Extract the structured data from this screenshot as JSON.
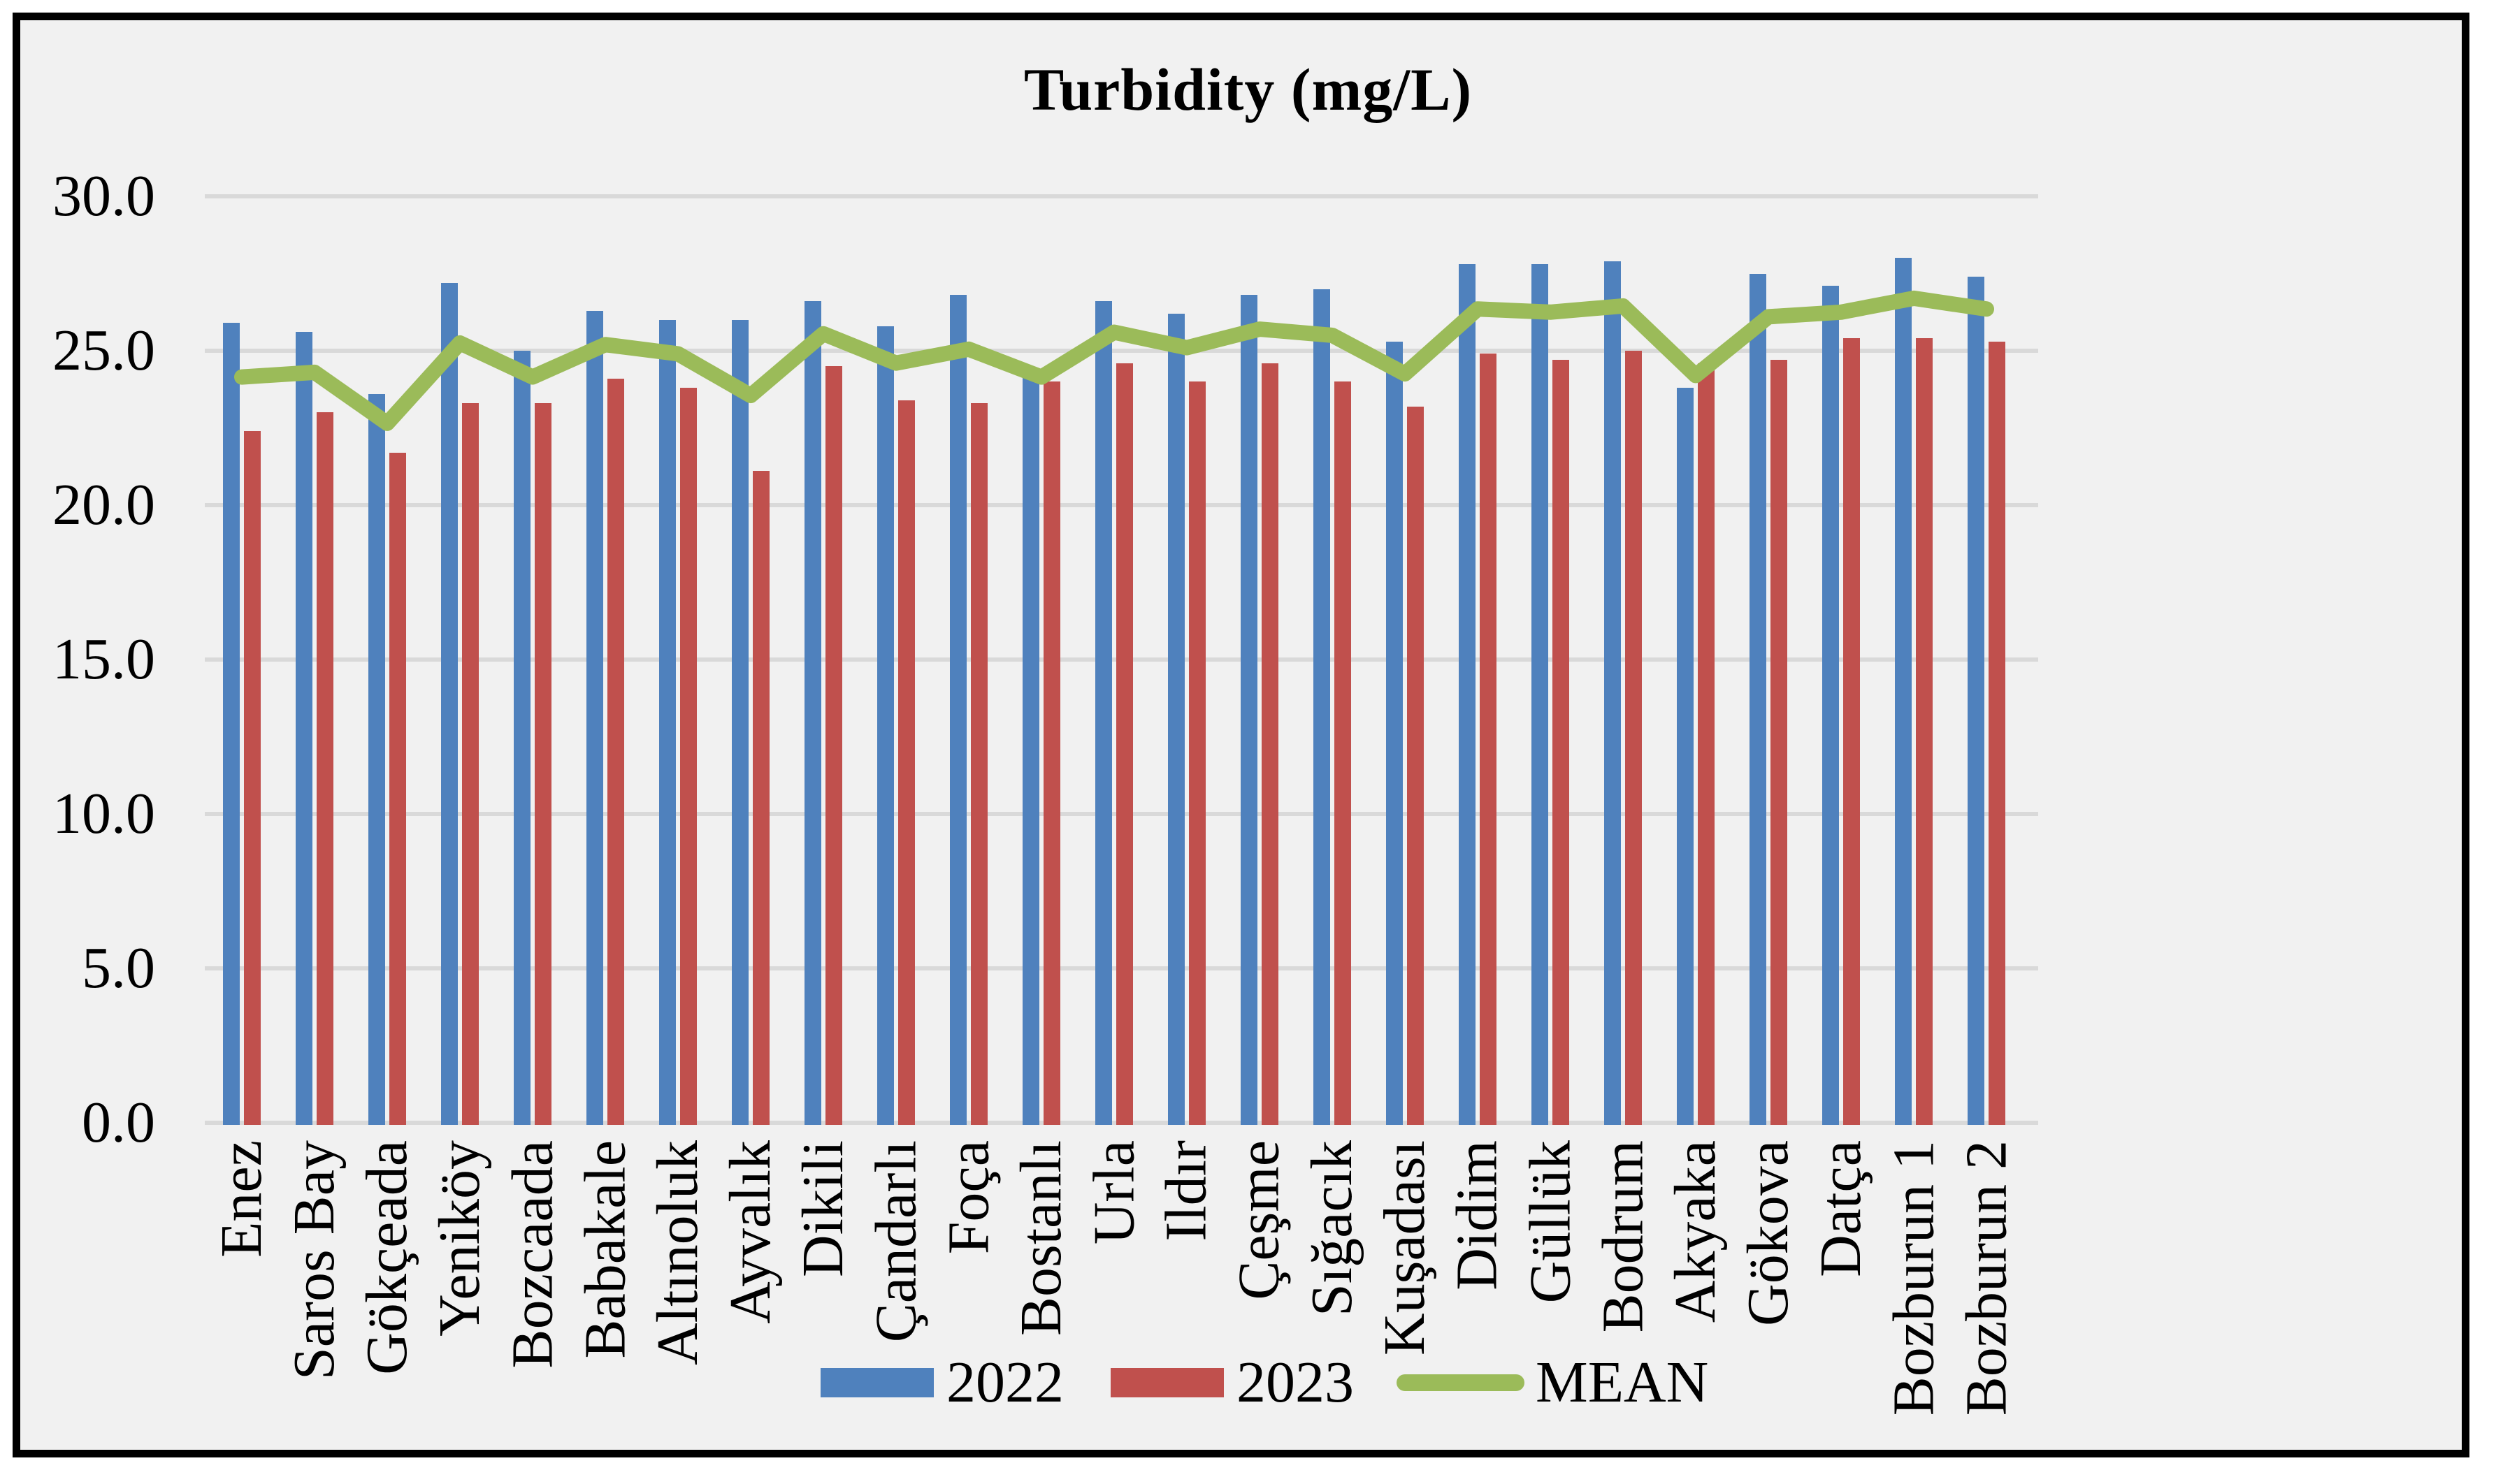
{
  "chart_title": "Turbidity (mg/L)",
  "colors": {
    "series_2022": "#4F81BD",
    "series_2023": "#C0504D",
    "mean_line": "#9BBB59",
    "gridline": "#D9D9D9",
    "plot_background": "#F1F1F1",
    "frame_border": "#000000"
  },
  "y_axis": {
    "min": 0,
    "max": 30,
    "step": 5,
    "tick_labels": [
      "0.0",
      "5.0",
      "10.0",
      "15.0",
      "20.0",
      "25.0",
      "30.0"
    ]
  },
  "legend": {
    "items": [
      {
        "label": "2022",
        "color": "#4F81BD",
        "swatch": "bar"
      },
      {
        "label": "2023",
        "color": "#C0504D",
        "swatch": "bar"
      },
      {
        "label": "MEAN",
        "color": "#9BBB59",
        "swatch": "line"
      }
    ]
  },
  "chart_data": {
    "type": "bar",
    "title": "Turbidity (mg/L)",
    "xlabel": "",
    "ylabel": "",
    "ylim": [
      0,
      30
    ],
    "ytick_step": 5,
    "grid": true,
    "legend_position": "bottom",
    "categories": [
      "Enez",
      "Saros Bay",
      "Gökçeada",
      "Yeniköy",
      "Bozcaada",
      "Babakale",
      "Altınoluk",
      "Ayvalık",
      "Dikili",
      "Çandarlı",
      "Foça",
      "Bostanlı",
      "Urla",
      "Ildır",
      "Çeşme",
      "Sığacık",
      "Kuşadası",
      "Didim",
      "Güllük",
      "Bodrum",
      "Akyaka",
      "Gökova",
      "Datça",
      "Bozburun 1",
      "Bozburun 2"
    ],
    "series": [
      {
        "name": "2022",
        "type": "bar",
        "color": "#4F81BD",
        "values": [
          25.9,
          25.6,
          23.6,
          27.2,
          25.0,
          26.3,
          26.0,
          26.0,
          26.6,
          25.8,
          26.8,
          24.3,
          26.6,
          26.2,
          26.8,
          27.0,
          25.3,
          27.8,
          27.8,
          27.9,
          23.8,
          27.5,
          27.1,
          28.0,
          27.4
        ]
      },
      {
        "name": "2023",
        "type": "bar",
        "color": "#C0504D",
        "values": [
          22.4,
          23.0,
          21.7,
          23.3,
          23.3,
          24.1,
          23.8,
          21.1,
          24.5,
          23.4,
          23.3,
          24.0,
          24.6,
          24.0,
          24.6,
          24.0,
          23.2,
          24.9,
          24.7,
          25.0,
          24.6,
          24.7,
          25.4,
          25.4,
          25.3
        ]
      },
      {
        "name": "MEAN",
        "type": "line",
        "color": "#9BBB59",
        "values": [
          24.15,
          24.3,
          22.65,
          25.25,
          24.15,
          25.2,
          24.9,
          23.55,
          25.55,
          24.6,
          25.05,
          24.15,
          25.6,
          25.1,
          25.7,
          25.5,
          24.25,
          26.35,
          26.25,
          26.45,
          24.2,
          26.1,
          26.25,
          26.7,
          26.35
        ]
      }
    ]
  }
}
